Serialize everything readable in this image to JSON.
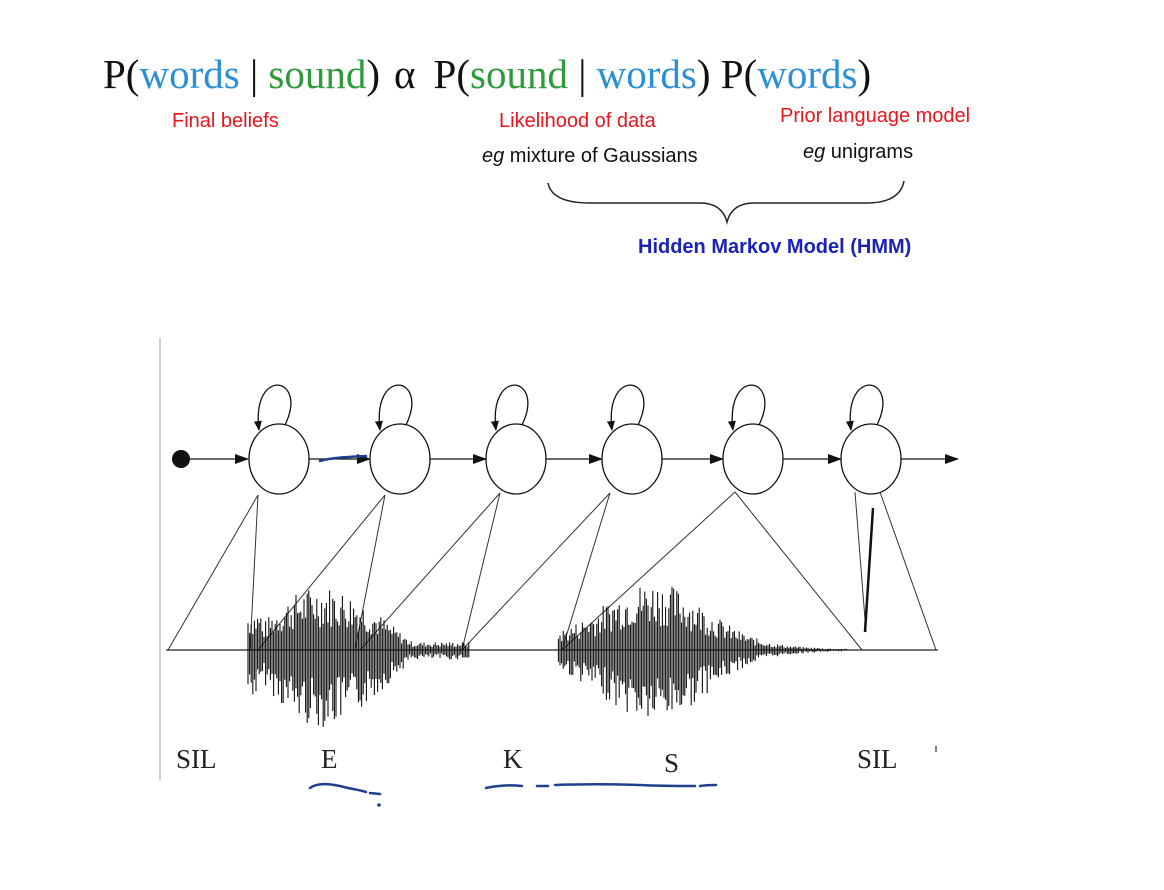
{
  "formula": {
    "p_open_1": "P(",
    "words_1": "words",
    "sep_1": " | ",
    "sound_1": "sound",
    "close_1": ")",
    "alpha": "α",
    "p_open_2": "P(",
    "sound_2": "sound",
    "sep_2": " | ",
    "words_2": "words",
    "close_2": ")",
    "p_open_3": " P(",
    "words_3": "words",
    "close_3": ")"
  },
  "annotations": {
    "final_beliefs": "Final beliefs",
    "likelihood": "Likelihood of data",
    "likelihood_eg": "eg",
    "likelihood_detail": " mixture of Gaussians",
    "prior": "Prior language model",
    "prior_eg": "eg",
    "prior_detail": " unigrams",
    "hmm": "Hidden Markov Model (HMM)"
  },
  "phoneme_labels": [
    "SIL",
    "E",
    "K",
    "S",
    "SIL"
  ],
  "colors": {
    "words": "#2b8fd6",
    "sound": "#2e9a3c",
    "annotation_red": "#e8151b",
    "hmm_blue": "#1a22b8",
    "ink_pen": "#1f3f8f"
  }
}
